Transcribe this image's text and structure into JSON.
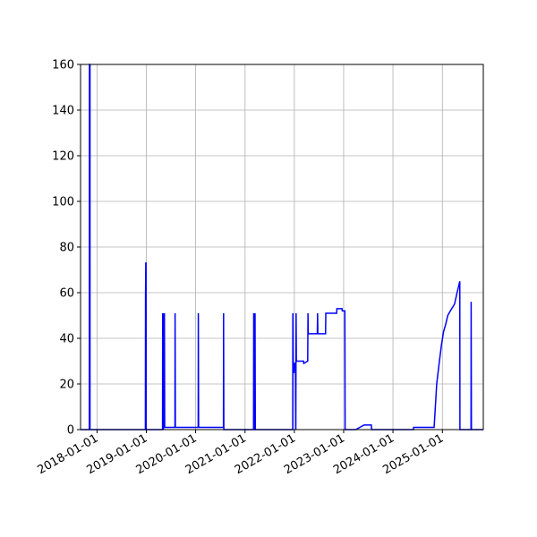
{
  "chart_data": {
    "type": "line",
    "title": "",
    "xlabel": "",
    "ylabel": "",
    "x_axis_type": "date",
    "xlim": [
      "2017-09-01",
      "2025-10-31"
    ],
    "ylim": [
      0,
      160
    ],
    "grid": true,
    "legend": "none",
    "line_color": "#0000ff",
    "y_ticks": [
      0,
      20,
      40,
      60,
      80,
      100,
      120,
      140,
      160
    ],
    "x_ticks": [
      "2018-01-01",
      "2019-01-01",
      "2020-01-01",
      "2021-01-01",
      "2022-01-01",
      "2023-01-01",
      "2024-01-01",
      "2025-01-01"
    ],
    "series": [
      {
        "points": [
          [
            "2017-09-01",
            0
          ],
          [
            "2017-11-05",
            0
          ],
          [
            "2017-11-06",
            160
          ],
          [
            "2017-11-10",
            160
          ],
          [
            "2017-11-10",
            0
          ],
          [
            "2018-12-25",
            0
          ],
          [
            "2018-12-26",
            58
          ],
          [
            "2018-12-28",
            73
          ],
          [
            "2018-12-30",
            73
          ],
          [
            "2018-12-31",
            0
          ],
          [
            "2019-05-01",
            0
          ],
          [
            "2019-05-02",
            51
          ],
          [
            "2019-05-04",
            0
          ],
          [
            "2019-05-06",
            51
          ],
          [
            "2019-05-08",
            0
          ],
          [
            "2019-05-10",
            51
          ],
          [
            "2019-05-12",
            1
          ],
          [
            "2019-05-15",
            51
          ],
          [
            "2019-05-17",
            1
          ],
          [
            "2019-08-01",
            1
          ],
          [
            "2019-08-02",
            51
          ],
          [
            "2019-08-04",
            1
          ],
          [
            "2020-01-20",
            1
          ],
          [
            "2020-01-21",
            51
          ],
          [
            "2020-01-23",
            1
          ],
          [
            "2020-07-25",
            1
          ],
          [
            "2020-07-26",
            51
          ],
          [
            "2020-07-28",
            0
          ],
          [
            "2021-03-05",
            0
          ],
          [
            "2021-03-06",
            51
          ],
          [
            "2021-03-08",
            0
          ],
          [
            "2021-03-15",
            0
          ],
          [
            "2021-03-16",
            51
          ],
          [
            "2021-03-18",
            0
          ],
          [
            "2021-12-20",
            0
          ],
          [
            "2021-12-21",
            51
          ],
          [
            "2021-12-23",
            25
          ],
          [
            "2021-12-30",
            25
          ],
          [
            "2022-01-01",
            29
          ],
          [
            "2022-01-10",
            29
          ],
          [
            "2022-01-12",
            0
          ],
          [
            "2022-01-14",
            51
          ],
          [
            "2022-01-16",
            30
          ],
          [
            "2022-03-10",
            30
          ],
          [
            "2022-03-12",
            29
          ],
          [
            "2022-04-10",
            30
          ],
          [
            "2022-04-12",
            51
          ],
          [
            "2022-04-14",
            42
          ],
          [
            "2022-06-20",
            42
          ],
          [
            "2022-06-22",
            51
          ],
          [
            "2022-06-24",
            42
          ],
          [
            "2022-08-20",
            42
          ],
          [
            "2022-08-22",
            51
          ],
          [
            "2022-11-10",
            51
          ],
          [
            "2022-11-12",
            53
          ],
          [
            "2022-12-20",
            53
          ],
          [
            "2022-12-22",
            52
          ],
          [
            "2023-01-10",
            52
          ],
          [
            "2023-01-12",
            0
          ],
          [
            "2023-04-01",
            0
          ],
          [
            "2023-06-01",
            2
          ],
          [
            "2023-07-25",
            2
          ],
          [
            "2023-07-27",
            0
          ],
          [
            "2024-06-01",
            0
          ],
          [
            "2024-06-02",
            1
          ],
          [
            "2024-11-01",
            1
          ],
          [
            "2024-11-05",
            5
          ],
          [
            "2024-11-20",
            20
          ],
          [
            "2024-12-10",
            30
          ],
          [
            "2024-12-25",
            37
          ],
          [
            "2025-01-10",
            43
          ],
          [
            "2025-01-25",
            46
          ],
          [
            "2025-02-10",
            50
          ],
          [
            "2025-03-01",
            52
          ],
          [
            "2025-04-01",
            55
          ],
          [
            "2025-04-20",
            60
          ],
          [
            "2025-05-10",
            65
          ],
          [
            "2025-05-11",
            0
          ],
          [
            "2025-08-01",
            0
          ],
          [
            "2025-08-02",
            56
          ],
          [
            "2025-08-04",
            0
          ],
          [
            "2025-10-31",
            0
          ]
        ]
      }
    ]
  }
}
